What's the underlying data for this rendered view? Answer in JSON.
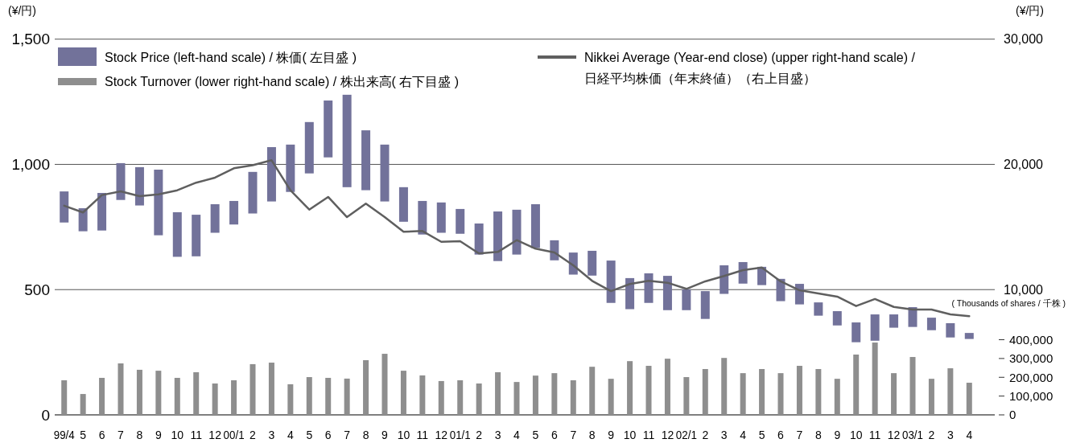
{
  "chart_data": {
    "type": "bar",
    "ylabel": "(¥/円)",
    "y2label": "(¥/円)",
    "y3label": "( Thousands of shares / 千株 )",
    "categories": [
      "99/4",
      "5",
      "6",
      "7",
      "8",
      "9",
      "10",
      "11",
      "12",
      "00/1",
      "2",
      "3",
      "4",
      "5",
      "6",
      "7",
      "8",
      "9",
      "10",
      "11",
      "12",
      "01/1",
      "2",
      "3",
      "4",
      "5",
      "6",
      "7",
      "8",
      "9",
      "10",
      "11",
      "12",
      "02/1",
      "2",
      "3",
      "4",
      "5",
      "6",
      "7",
      "8",
      "9",
      "10",
      "11",
      "12",
      "03/1",
      "2",
      "3",
      "4"
    ],
    "ylim": [
      0,
      1500
    ],
    "yticks": [
      0,
      500,
      {
        "value": 1000,
        "label": "1,000"
      },
      {
        "value": 1500,
        "label": "1,500"
      }
    ],
    "y2lim": [
      0,
      30000
    ],
    "y2ticks": [
      {
        "value": 10000,
        "label": "10,000"
      },
      {
        "value": 20000,
        "label": "20,000"
      },
      {
        "value": 30000,
        "label": "30,000"
      }
    ],
    "y3lim": [
      0,
      2000000
    ],
    "y3ticks": [
      0,
      {
        "value": 100000,
        "label": "100,000"
      },
      {
        "value": 200000,
        "label": "200,000"
      },
      {
        "value": 300000,
        "label": "300,000"
      },
      {
        "value": 400000,
        "label": "400,000"
      }
    ],
    "grid": "y",
    "legend": "top",
    "series": [
      {
        "name": "Stock Price (left-hand scale) / 株価( 左目盛 )",
        "color": "#72729a",
        "base": [
          768,
          733,
          736,
          858,
          836,
          717,
          631,
          633,
          727,
          760,
          804,
          852,
          890,
          964,
          1028,
          909,
          897,
          852,
          771,
          720,
          727,
          723,
          640,
          614,
          640,
          666,
          617,
          560,
          556,
          447,
          422,
          447,
          418,
          418,
          383,
          483,
          524,
          518,
          454,
          441,
          396,
          357,
          290,
          296,
          348,
          351,
          338,
          309,
          303
        ],
        "values": [
          124,
          92,
          150,
          147,
          153,
          262,
          178,
          166,
          114,
          94,
          166,
          217,
          189,
          205,
          227,
          369,
          239,
          227,
          138,
          134,
          121,
          99,
          124,
          198,
          179,
          175,
          80,
          88,
          99,
          169,
          124,
          118,
          137,
          83,
          111,
          114,
          86,
          73,
          89,
          82,
          53,
          57,
          79,
          105,
          53,
          79,
          50,
          57,
          24
        ]
      },
      {
        "axis": "y3",
        "name": "Stock Turnover (lower right-hand scale) / 株出来高( 右下目盛 )",
        "color": "#8e8e8e",
        "values": [
          184000,
          111000,
          197000,
          274000,
          240000,
          235000,
          197000,
          227000,
          167000,
          184000,
          270000,
          278000,
          163000,
          201000,
          197000,
          193000,
          291000,
          325000,
          235000,
          210000,
          180000,
          184000,
          167000,
          227000,
          175000,
          209000,
          222000,
          184000,
          256000,
          192000,
          286000,
          261000,
          299000,
          201000,
          244000,
          303000,
          222000,
          244000,
          222000,
          261000,
          244000,
          192000,
          321000,
          385000,
          222000,
          308000,
          192000,
          248000,
          171000
        ]
      },
      {
        "type": "line",
        "axis": "y2",
        "name": "Nikkei Average (Year-end close) (upper right-hand scale) / 日経平均株価（年末終値）（右上目盛）",
        "color": "#5f5f5f",
        "values": [
          16700,
          16160,
          17550,
          17850,
          17460,
          17610,
          17930,
          18540,
          18940,
          19690,
          19930,
          20330,
          17930,
          16390,
          17400,
          15790,
          16870,
          15790,
          14620,
          14680,
          13820,
          13870,
          12890,
          13010,
          13950,
          13270,
          12970,
          11940,
          10700,
          9880,
          10450,
          10700,
          10550,
          10060,
          10660,
          11090,
          11560,
          11770,
          10660,
          9950,
          9700,
          9440,
          8690,
          9250,
          8620,
          8410,
          8410,
          8030,
          7880
        ]
      }
    ]
  }
}
